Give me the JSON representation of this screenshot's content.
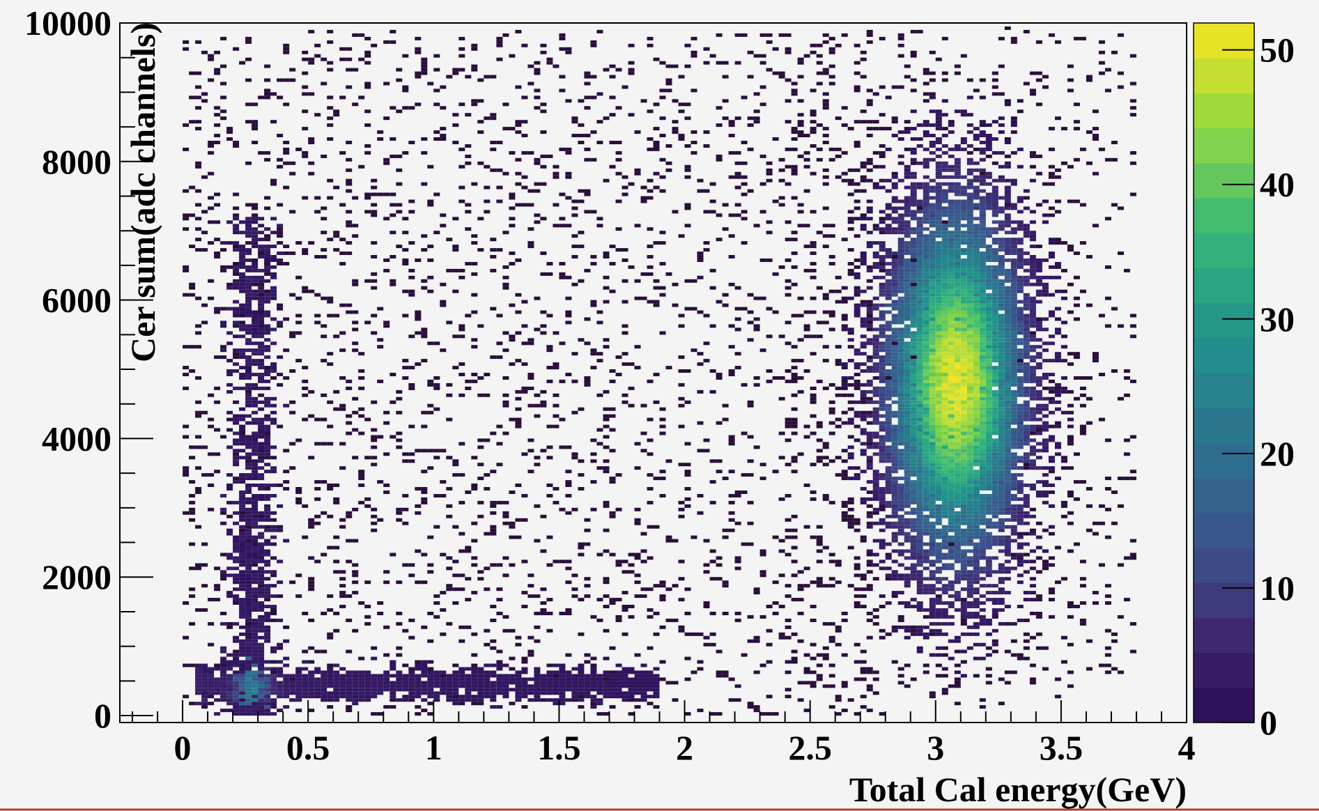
{
  "chart_data": {
    "type": "heatmap",
    "title": "",
    "xlabel": "Total Cal energy(GeV)",
    "ylabel": "Cer sum(adc channels)",
    "xlim": [
      -0.25,
      4
    ],
    "ylim": [
      -100,
      10000
    ],
    "x_ticks": [
      0,
      0.5,
      1,
      1.5,
      2,
      2.5,
      3,
      3.5,
      4
    ],
    "x_tick_labels": [
      "0",
      "0.5",
      "1",
      "1.5",
      "2",
      "2.5",
      "3",
      "3.5",
      "4"
    ],
    "y_ticks": [
      0,
      2000,
      4000,
      6000,
      8000,
      10000
    ],
    "y_tick_labels": [
      "0",
      "2000",
      "4000",
      "6000",
      "8000",
      "10000"
    ],
    "colorbar": {
      "min": 0,
      "max": 52,
      "ticks": [
        0,
        10,
        20,
        30,
        40,
        50
      ],
      "tick_labels": [
        "0",
        "10",
        "20",
        "30",
        "40",
        "50"
      ],
      "palette": "viridis"
    },
    "bin_width": {
      "x": 0.025,
      "y": 50
    },
    "grid": false,
    "features": [
      {
        "name": "electron peak",
        "x_center": 3.08,
        "y_center": 4800,
        "x_sigma": 0.16,
        "y_sigma": 1500,
        "peak_count": 50
      },
      {
        "name": "pion MIP vertical band",
        "x_center": 0.28,
        "y_range": [
          0,
          7000
        ],
        "count_range": [
          1,
          4
        ]
      },
      {
        "name": "low signal horizontal band",
        "y_center": 450,
        "x_range": [
          0.05,
          1.9
        ],
        "peak_x": 0.28,
        "peak_count": 26
      },
      {
        "name": "diffuse background",
        "x_range": [
          0.0,
          2.8
        ],
        "y_range": [
          0,
          10000
        ],
        "count": 1
      }
    ]
  }
}
